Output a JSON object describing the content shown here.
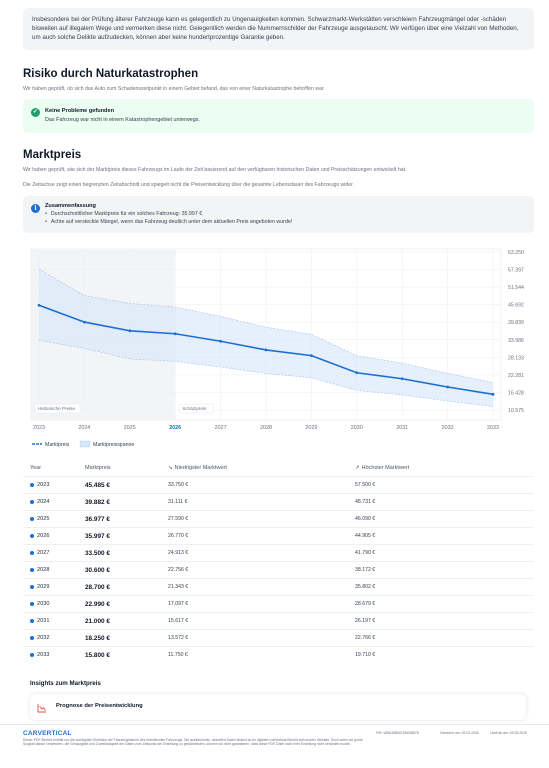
{
  "top_note": "Insbesondere bei der Prüfung älterer Fahrzeuge kann es gelegentlich zu Ungenauigkeiten kommen. Schwarzmarkt-Werkstätten verschleiern Fahrzeugmängel oder -schäden bisweilen auf illegalem Wege und vermerken diese nicht. Gelegentlich werden die Nummernschilder der Fahrzeuge ausgetauscht. Wir verfügen über eine Vielzahl von Methoden, um auch solche Delikte aufzudecken, können aber keine hundertprozentige Garantie geben.",
  "disaster": {
    "title": "Risiko durch Naturkatastrophen",
    "text": "Wir haben geprüft, ob sich das Auto zum Schadenszeitpunkt in einem Gebiet befand, das von einer Naturkatastrophe betroffen war.",
    "status_title": "Keine Probleme gefunden",
    "status_text": "Das Fahrzeug war nicht in einem Katastrophengebiet unterwegs.",
    "icon": "check-icon"
  },
  "market": {
    "title": "Marktpreis",
    "text1": "Wir haben geprüft, wie sich der Marktpreis dieses Fahrzeugs im Laufe der Zeit basierend auf den verfügbaren historischen Daten und Preisschätzungen entwickelt hat.",
    "text2": "Die Zeitachse zeigt einen begrenzten Zeitabschnitt und spiegelt nicht die Preisentwicklung über die gesamte Lebensdauer des Fahrzeugs wider.",
    "summary_title": "Zusammenfassung",
    "summary_items": [
      "Durchschnittlicher Marktpreis für ein solches Fahrzeug: 35.997 €",
      "Achte auf versteckte Mängel, wenn das Fahrzeug deutlich unter dem aktuellen Preis angeboten wurde!"
    ],
    "icon": "info-icon"
  },
  "chart_data": {
    "type": "line",
    "x": [
      "2023",
      "2024",
      "2025",
      "2026",
      "2027",
      "2028",
      "2029",
      "2030",
      "2031",
      "2032",
      "2033"
    ],
    "highlight_x": "2026",
    "series": [
      {
        "name": "Marktpreis",
        "values": [
          45485,
          39882,
          36977,
          35997,
          33500,
          30600,
          28700,
          22990,
          21000,
          18250,
          15800
        ],
        "color": "#1c6fd1"
      },
      {
        "name": "Marktpreisspanne",
        "low": [
          33750,
          31111,
          27590,
          26770,
          24913,
          22756,
          21343,
          17097,
          15617,
          13572,
          11750
        ],
        "high": [
          57500,
          48731,
          46090,
          44905,
          41790,
          38172,
          35802,
          28679,
          26197,
          22766,
          19710
        ],
        "color": "#d6e6fa"
      }
    ],
    "y_ticks": [
      "63.250",
      "57.397",
      "51.544",
      "45.692",
      "39.839",
      "33.986",
      "28.133",
      "22.281",
      "16.428",
      "10.575"
    ],
    "ylim": [
      10575,
      63250
    ],
    "region_labels": [
      "Historische Preise",
      "Schätzpreis"
    ],
    "historic_until": "2026",
    "grid": true,
    "legend": "bottom-left"
  },
  "table": {
    "headers": [
      "Year",
      "Marktpreis",
      "Niedrigster Marktwert",
      "Höchster Marktwert"
    ],
    "rows": [
      {
        "year": "2023",
        "price": "45.485 €",
        "low": "33.750 €",
        "high": "57.500 €"
      },
      {
        "year": "2024",
        "price": "39.882 €",
        "low": "31.111 €",
        "high": "48.731 €"
      },
      {
        "year": "2025",
        "price": "36.977 €",
        "low": "27.590 €",
        "high": "46.090 €"
      },
      {
        "year": "2026",
        "price": "35.997 €",
        "low": "26.770 €",
        "high": "44.905 €"
      },
      {
        "year": "2027",
        "price": "33.500 €",
        "low": "24.913 €",
        "high": "41.790 €"
      },
      {
        "year": "2028",
        "price": "30.600 €",
        "low": "22.756 €",
        "high": "38.172 €"
      },
      {
        "year": "2029",
        "price": "28.700 €",
        "low": "21.343 €",
        "high": "35.802 €"
      },
      {
        "year": "2030",
        "price": "22.990 €",
        "low": "17.097 €",
        "high": "28.679 €"
      },
      {
        "year": "2031",
        "price": "21.000 €",
        "low": "15.617 €",
        "high": "26.197 €"
      },
      {
        "year": "2032",
        "price": "18.250 €",
        "low": "13.572 €",
        "high": "22.766 €"
      },
      {
        "year": "2033",
        "price": "15.800 €",
        "low": "11.750 €",
        "high": "19.710 €"
      }
    ]
  },
  "insights": {
    "title": "Insights zum Marktpreis",
    "card_title": "Prognose der Preisentwicklung",
    "card_icon": "trend-down-icon"
  },
  "footer": {
    "logo": "CARVERTICAL",
    "text": "Dieser PDF-Bericht enthält nur die wichtigsten Einblicke der Fahrzeughistorie des betreffenden Fahrzeugs. Die ausführlichen, aktuellen Daten findest du im digitalen carVertical-Bericht auf unserer Website. Such wenn wir große Sorgfalt darauf verwenden, die Genauigkeit und Zuverlässigkeit der Daten zum Zeitpunkt der Erstellung zu gewährleisten, können wir nicht garantieren, dass diese PDF-Datei nach ihrer Erstellung nicht verändert wurde.",
    "fin": "FIN: WBA35B001SN008878",
    "generated": "Generiert am: 09.04.2026",
    "expires": "Läuft ab am: 09.05.2026"
  },
  "colors": {
    "accent": "#1c6fd1",
    "success": "#22a06b",
    "band": "#d6e6fa"
  }
}
